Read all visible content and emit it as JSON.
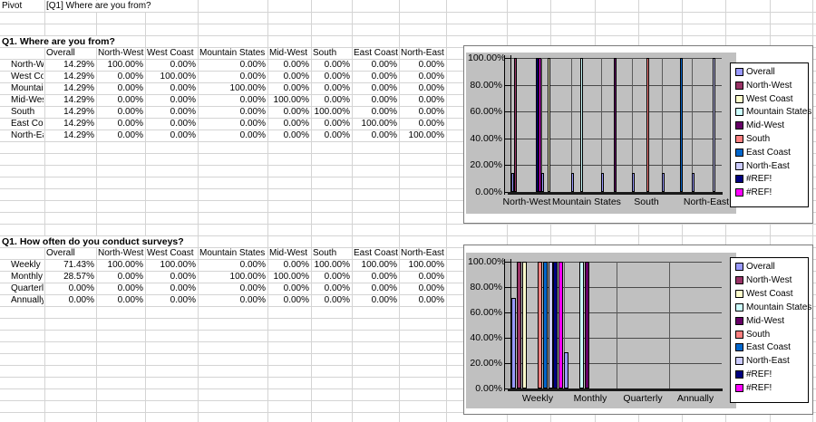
{
  "header": {
    "cell_a1": "Pivot",
    "cell_b1": "[Q1] Where are you from?"
  },
  "tables": [
    {
      "title": "Q1. Where are you from?",
      "columns": [
        "Overall",
        "North-West",
        "West Coast",
        "Mountain States",
        "Mid-West",
        "South",
        "East Coast",
        "North-East"
      ],
      "rows": [
        {
          "label": "North-West",
          "values": [
            "14.29%",
            "100.00%",
            "0.00%",
            "0.00%",
            "0.00%",
            "0.00%",
            "0.00%",
            "0.00%"
          ]
        },
        {
          "label": "West Coast",
          "values": [
            "14.29%",
            "0.00%",
            "100.00%",
            "0.00%",
            "0.00%",
            "0.00%",
            "0.00%",
            "0.00%"
          ]
        },
        {
          "label": "Mountain States",
          "values": [
            "14.29%",
            "0.00%",
            "0.00%",
            "100.00%",
            "0.00%",
            "0.00%",
            "0.00%",
            "0.00%"
          ]
        },
        {
          "label": "Mid-West",
          "values": [
            "14.29%",
            "0.00%",
            "0.00%",
            "0.00%",
            "100.00%",
            "0.00%",
            "0.00%",
            "0.00%"
          ]
        },
        {
          "label": "South",
          "values": [
            "14.29%",
            "0.00%",
            "0.00%",
            "0.00%",
            "0.00%",
            "100.00%",
            "0.00%",
            "0.00%"
          ]
        },
        {
          "label": "East Coast",
          "values": [
            "14.29%",
            "0.00%",
            "0.00%",
            "0.00%",
            "0.00%",
            "0.00%",
            "100.00%",
            "0.00%"
          ]
        },
        {
          "label": "North-East",
          "values": [
            "14.29%",
            "0.00%",
            "0.00%",
            "0.00%",
            "0.00%",
            "0.00%",
            "0.00%",
            "100.00%"
          ]
        }
      ]
    },
    {
      "title": "Q1. How often do you conduct surveys?",
      "columns": [
        "Overall",
        "North-West",
        "West Coast",
        "Mountain States",
        "Mid-West",
        "South",
        "East Coast",
        "North-East"
      ],
      "rows": [
        {
          "label": "Weekly",
          "values": [
            "71.43%",
            "100.00%",
            "100.00%",
            "0.00%",
            "0.00%",
            "100.00%",
            "100.00%",
            "100.00%"
          ]
        },
        {
          "label": "Monthly",
          "values": [
            "28.57%",
            "0.00%",
            "0.00%",
            "100.00%",
            "100.00%",
            "0.00%",
            "0.00%",
            "0.00%"
          ]
        },
        {
          "label": "Quarterly",
          "values": [
            "0.00%",
            "0.00%",
            "0.00%",
            "0.00%",
            "0.00%",
            "0.00%",
            "0.00%",
            "0.00%"
          ]
        },
        {
          "label": "Annually",
          "values": [
            "0.00%",
            "0.00%",
            "0.00%",
            "0.00%",
            "0.00%",
            "0.00%",
            "0.00%",
            "0.00%"
          ]
        }
      ]
    }
  ],
  "chart_data": [
    {
      "type": "bar",
      "title": "",
      "categories": [
        "North-West",
        "West Coast",
        "Mountain States",
        "Mid-West",
        "South",
        "East Coast",
        "North-East"
      ],
      "shown_x_tick_labels": [
        "North-West",
        "Mountain States",
        "South",
        "North-East"
      ],
      "yticks": [
        "100.00%",
        "80.00%",
        "60.00%",
        "40.00%",
        "20.00%",
        "0.00%"
      ],
      "ylim": [
        0,
        100
      ],
      "grid": true,
      "legend_position": "right",
      "plot_background": "#c0c0c0",
      "series": [
        {
          "name": "Overall",
          "color": "#9999FF",
          "values": [
            14.29,
            14.29,
            14.29,
            14.29,
            14.29,
            14.29,
            14.29
          ]
        },
        {
          "name": "North-West",
          "color": "#993366",
          "values": [
            100,
            0,
            0,
            0,
            0,
            0,
            0
          ]
        },
        {
          "name": "West Coast",
          "color": "#FFFFCC",
          "values": [
            0,
            100,
            0,
            0,
            0,
            0,
            0
          ]
        },
        {
          "name": "Mountain States",
          "color": "#CCFFFF",
          "values": [
            0,
            0,
            100,
            0,
            0,
            0,
            0
          ]
        },
        {
          "name": "Mid-West",
          "color": "#660066",
          "values": [
            0,
            0,
            0,
            100,
            0,
            0,
            0
          ]
        },
        {
          "name": "South",
          "color": "#FF8080",
          "values": [
            0,
            0,
            0,
            0,
            100,
            0,
            0
          ]
        },
        {
          "name": "East Coast",
          "color": "#0066CC",
          "values": [
            0,
            0,
            0,
            0,
            0,
            100,
            0
          ]
        },
        {
          "name": "North-East",
          "color": "#CCCCFF",
          "values": [
            0,
            0,
            0,
            0,
            0,
            0,
            100
          ]
        },
        {
          "name": "#REF!",
          "color": "#000080",
          "values": [
            100,
            0,
            0,
            0,
            0,
            0,
            0
          ]
        },
        {
          "name": "#REF!",
          "color": "#FF00FF",
          "values": [
            100,
            0,
            0,
            0,
            0,
            0,
            0
          ]
        }
      ]
    },
    {
      "type": "bar",
      "title": "",
      "categories": [
        "Weekly",
        "Monthly",
        "Quarterly",
        "Annually"
      ],
      "shown_x_tick_labels": [
        "Weekly",
        "Monthly",
        "Quarterly",
        "Annually"
      ],
      "yticks": [
        "100.00%",
        "80.00%",
        "60.00%",
        "40.00%",
        "20.00%",
        "0.00%"
      ],
      "ylim": [
        0,
        100
      ],
      "grid": true,
      "legend_position": "right",
      "plot_background": "#c0c0c0",
      "series": [
        {
          "name": "Overall",
          "color": "#9999FF",
          "values": [
            71.43,
            28.57,
            0,
            0
          ]
        },
        {
          "name": "North-West",
          "color": "#993366",
          "values": [
            100,
            0,
            0,
            0
          ]
        },
        {
          "name": "West Coast",
          "color": "#FFFFCC",
          "values": [
            100,
            0,
            0,
            0
          ]
        },
        {
          "name": "Mountain States",
          "color": "#CCFFFF",
          "values": [
            0,
            100,
            0,
            0
          ]
        },
        {
          "name": "Mid-West",
          "color": "#660066",
          "values": [
            0,
            100,
            0,
            0
          ]
        },
        {
          "name": "South",
          "color": "#FF8080",
          "values": [
            100,
            0,
            0,
            0
          ]
        },
        {
          "name": "East Coast",
          "color": "#0066CC",
          "values": [
            100,
            0,
            0,
            0
          ]
        },
        {
          "name": "North-East",
          "color": "#CCCCFF",
          "values": [
            100,
            0,
            0,
            0
          ]
        },
        {
          "name": "#REF!",
          "color": "#000080",
          "values": [
            100,
            0,
            0,
            0
          ]
        },
        {
          "name": "#REF!",
          "color": "#FF00FF",
          "values": [
            100,
            0,
            0,
            0
          ]
        }
      ]
    }
  ]
}
